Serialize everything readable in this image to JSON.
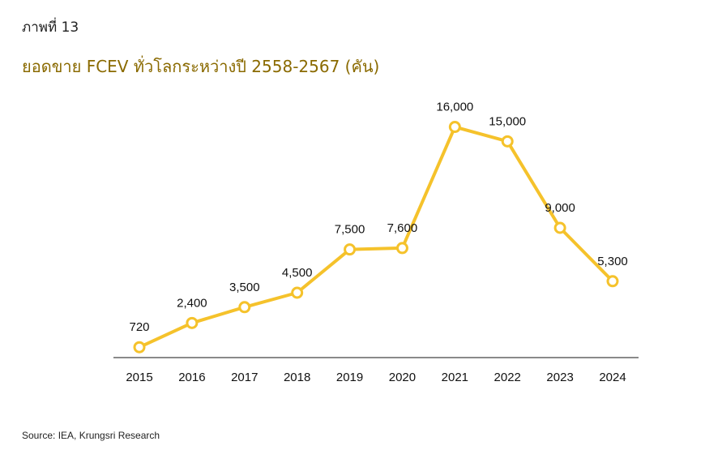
{
  "figure_label": "ภาพที่ 13",
  "title": "ยอดขาย FCEV ทั่วโลกระหว่างปี 2558-2567 (คัน)",
  "source": "Source: IEA, Krungsri Research",
  "colors": {
    "line": "#F5C22B",
    "marker_fill": "#ffffff",
    "title": "#8a6a00",
    "axis": "#444444"
  },
  "chart_data": {
    "type": "line",
    "categories": [
      "2015",
      "2016",
      "2017",
      "2018",
      "2019",
      "2020",
      "2021",
      "2022",
      "2023",
      "2024"
    ],
    "series": [
      {
        "values": [
          720,
          2400,
          3500,
          4500,
          7500,
          7600,
          16000,
          15000,
          9000,
          5300
        ],
        "labels": [
          "720",
          "2,400",
          "3,500",
          "4,500",
          "7,500",
          "7,600",
          "16,000",
          "15,000",
          "9,000",
          "5,300"
        ]
      }
    ],
    "ylim": [
      0,
      18000
    ],
    "grid": false,
    "legend": "none"
  }
}
